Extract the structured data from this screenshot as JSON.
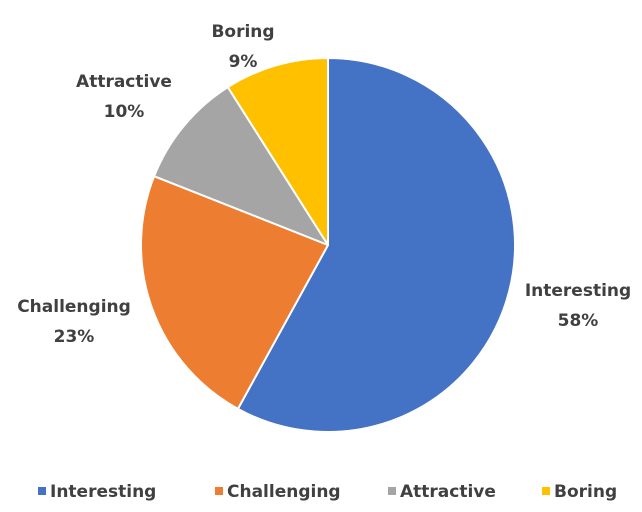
{
  "chart_data": {
    "type": "pie",
    "title": "",
    "categories": [
      "Interesting",
      "Challenging",
      "Attractive",
      "Boring"
    ],
    "values": [
      58,
      23,
      10,
      9
    ],
    "value_labels": [
      "58%",
      "23%",
      "10%",
      "9%"
    ],
    "colors": [
      "#4472C4",
      "#ED7D31",
      "#A5A5A5",
      "#FFC000"
    ],
    "start_angle": "12 o'clock",
    "direction": "clockwise",
    "legend": {
      "position": "bottom",
      "entries": [
        "Interesting",
        "Challenging",
        "Attractive",
        "Boring"
      ]
    }
  }
}
